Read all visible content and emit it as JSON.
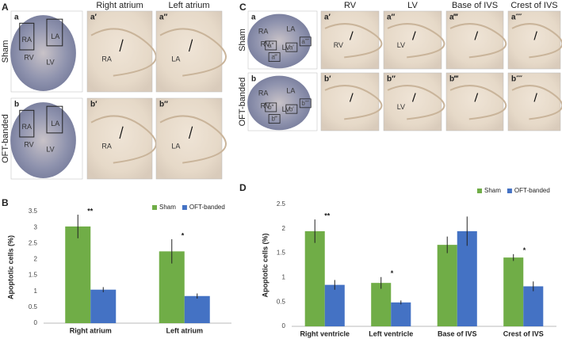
{
  "figure_a": {
    "letter": "A",
    "columns": [
      "Right atrium",
      "Left atrium"
    ],
    "rows": [
      "Sham",
      "OFT-banded"
    ],
    "images": [
      {
        "label": "a",
        "regions": [
          "RA",
          "LA",
          "RV",
          "LV"
        ]
      },
      {
        "label": "a′",
        "regions": [
          "RA"
        ]
      },
      {
        "label": "a″",
        "regions": [
          "LA"
        ]
      },
      {
        "label": "b",
        "regions": [
          "RA",
          "LA",
          "RV",
          "LV"
        ]
      },
      {
        "label": "b′",
        "regions": [
          "RA"
        ]
      },
      {
        "label": "b″",
        "regions": [
          "LA"
        ]
      }
    ]
  },
  "figure_c": {
    "letter": "C",
    "columns": [
      "RV",
      "LV",
      "Base of IVS",
      "Crest of IVS"
    ],
    "rows": [
      "Sham",
      "OFT-banded"
    ],
    "images": [
      {
        "label": "a",
        "regions": [
          "RA",
          "LA",
          "RV",
          "LV"
        ],
        "boxes": [
          "a′",
          "a″",
          "a‴",
          "a⁗"
        ]
      },
      {
        "label": "a′",
        "regions": [
          "RV"
        ]
      },
      {
        "label": "a″",
        "regions": [
          "LV"
        ]
      },
      {
        "label": "a‴"
      },
      {
        "label": "a⁗"
      },
      {
        "label": "b",
        "regions": [
          "RV",
          "RA",
          "LA",
          "LV"
        ],
        "boxes": [
          "b′",
          "b″",
          "b‴",
          "b⁗"
        ]
      },
      {
        "label": "b′"
      },
      {
        "label": "b″",
        "regions": [
          "LV"
        ]
      },
      {
        "label": "b‴"
      },
      {
        "label": "b⁗"
      }
    ]
  },
  "chart_data": [
    {
      "type": "bar",
      "panel": "B",
      "ylabel": "Apoptotic cells (%)",
      "categories": [
        "Right atrium",
        "Left atrium"
      ],
      "series": [
        {
          "name": "Sham",
          "color": "#70ad47",
          "values": [
            3.03,
            2.25
          ],
          "errors": [
            0.37,
            0.38
          ]
        },
        {
          "name": "OFT-banded",
          "color": "#4472c4",
          "values": [
            1.05,
            0.85
          ],
          "errors": [
            0.08,
            0.08
          ]
        }
      ],
      "annotations": [
        "**",
        "*"
      ],
      "ylim": [
        0,
        3.5
      ],
      "yticks": [
        0,
        0.5,
        1,
        1.5,
        2,
        2.5,
        3,
        3.5
      ],
      "legend": "top-right"
    },
    {
      "type": "bar",
      "panel": "D",
      "ylabel": "Apoptotic cells (%)",
      "categories": [
        "Right ventricle",
        "Left ventricle",
        "Base of IVS",
        "Crest of IVS"
      ],
      "series": [
        {
          "name": "Sham",
          "color": "#70ad47",
          "values": [
            1.95,
            0.89,
            1.67,
            1.41
          ],
          "errors": [
            0.24,
            0.12,
            0.17,
            0.07
          ]
        },
        {
          "name": "OFT-banded",
          "color": "#4472c4",
          "values": [
            0.85,
            0.49,
            1.95,
            0.82
          ],
          "errors": [
            0.1,
            0.04,
            0.3,
            0.1
          ]
        }
      ],
      "annotations": [
        "**",
        "*",
        null,
        "*"
      ],
      "ylim": [
        0,
        2.5
      ],
      "yticks": [
        0,
        0.5,
        1,
        1.5,
        2,
        2.5
      ],
      "legend": "top-right"
    }
  ]
}
